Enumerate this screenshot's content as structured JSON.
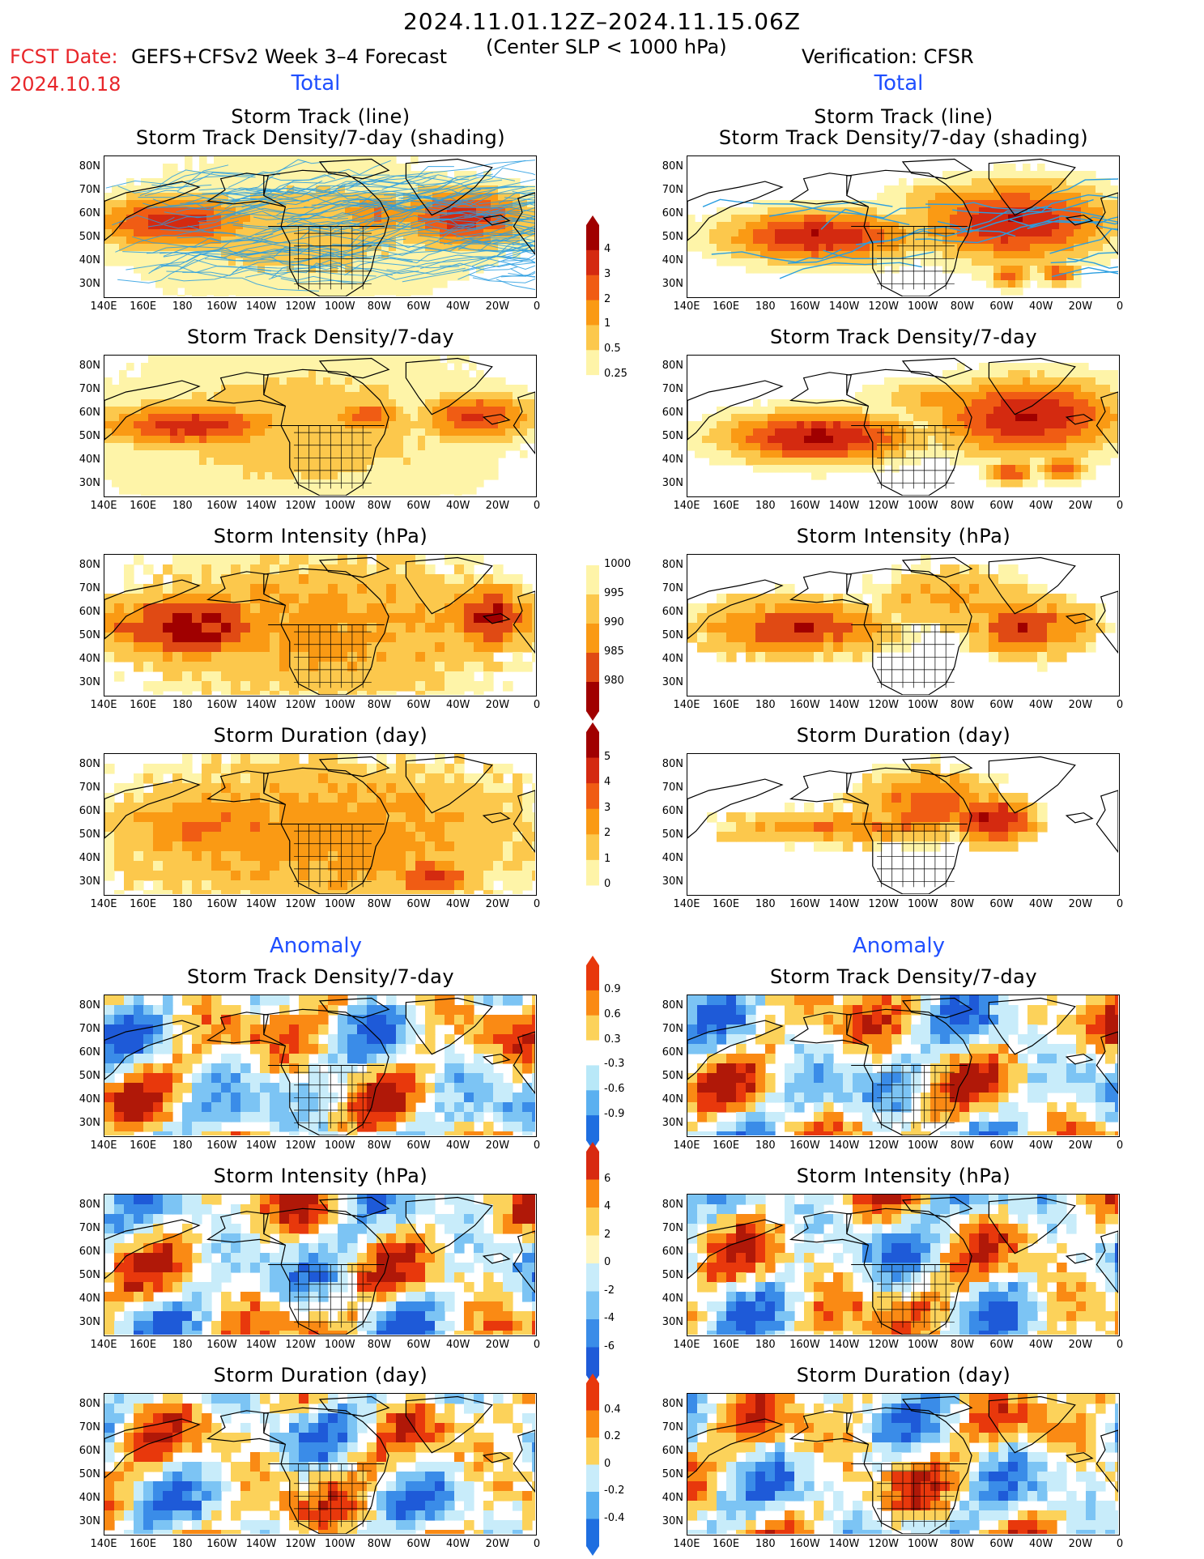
{
  "header": {
    "title": "2024.11.01.12Z–2024.11.15.06Z",
    "subtitle": "(Center SLP < 1000 hPa)",
    "fcst_date_label": "FCST Date:",
    "fcst_date_value": "2024.10.18",
    "forecast_model": "GEFS+CFSv2 Week 3–4 Forecast",
    "verification": "Verification: CFSR"
  },
  "sections": {
    "total": "Total",
    "anomaly": "Anomaly"
  },
  "axes": {
    "lat_labels": [
      "80N",
      "70N",
      "60N",
      "50N",
      "40N",
      "30N"
    ],
    "lon_labels": [
      "140E",
      "160E",
      "180",
      "160W",
      "140W",
      "120W",
      "100W",
      "80W",
      "60W",
      "40W",
      "20W",
      "0"
    ]
  },
  "panels": [
    {
      "id": "fc-track",
      "col": 0,
      "row": 0,
      "title1": "Storm Track (line)",
      "title2": "Storm Track Density/7-day (shading)",
      "kind": "track",
      "scale": "dens",
      "tracks": true
    },
    {
      "id": "vf-track",
      "col": 1,
      "row": 0,
      "title1": "Storm Track (line)",
      "title2": "Storm Track Density/7-day (shading)",
      "kind": "track",
      "scale": "dens",
      "tracks": true
    },
    {
      "id": "fc-density",
      "col": 0,
      "row": 1,
      "title1": "Storm Track Density/7-day",
      "kind": "density",
      "scale": "dens"
    },
    {
      "id": "vf-density",
      "col": 1,
      "row": 1,
      "title1": "Storm Track Density/7-day",
      "kind": "density",
      "scale": "dens"
    },
    {
      "id": "fc-intensity",
      "col": 0,
      "row": 2,
      "title1": "Storm Intensity (hPa)",
      "kind": "intensity",
      "scale": "int"
    },
    {
      "id": "vf-intensity",
      "col": 1,
      "row": 2,
      "title1": "Storm Intensity (hPa)",
      "kind": "intensity",
      "scale": "int"
    },
    {
      "id": "fc-duration",
      "col": 0,
      "row": 3,
      "title1": "Storm Duration (day)",
      "kind": "duration",
      "scale": "dur"
    },
    {
      "id": "vf-duration",
      "col": 1,
      "row": 3,
      "title1": "Storm Duration (day)",
      "kind": "duration",
      "scale": "dur"
    },
    {
      "id": "fc-density-anom",
      "col": 0,
      "row": 4,
      "title1": "Storm Track Density/7-day",
      "kind": "anom",
      "scale": "anom"
    },
    {
      "id": "vf-density-anom",
      "col": 1,
      "row": 4,
      "title1": "Storm Track Density/7-day",
      "kind": "anom",
      "scale": "anom"
    },
    {
      "id": "fc-intensity-anom",
      "col": 0,
      "row": 5,
      "title1": "Storm Intensity (hPa)",
      "kind": "anom",
      "scale": "anom"
    },
    {
      "id": "vf-intensity-anom",
      "col": 1,
      "row": 5,
      "title1": "Storm Intensity (hPa)",
      "kind": "anom",
      "scale": "anom"
    },
    {
      "id": "fc-duration-anom",
      "col": 0,
      "row": 6,
      "title1": "Storm Duration (day)",
      "kind": "anom",
      "scale": "anom"
    },
    {
      "id": "vf-duration-anom",
      "col": 1,
      "row": 6,
      "title1": "Storm Duration (day)",
      "kind": "anom",
      "scale": "anom"
    }
  ],
  "colorbars": [
    {
      "id": "cb-density",
      "labels": [
        "4",
        "3",
        "2",
        "1",
        "0.5",
        "0.25"
      ],
      "colors": [
        "#a00000",
        "#d42a10",
        "#f05c14",
        "#fa9a14",
        "#fcc84c",
        "#fef4a8",
        "#ffffff"
      ],
      "direction": "up"
    },
    {
      "id": "cb-intensity",
      "labels": [
        "1000",
        "995",
        "990",
        "985",
        "980"
      ],
      "colors": [
        "#ffffff",
        "#fef4a8",
        "#fcc84c",
        "#fa9a14",
        "#e04a14",
        "#a00000"
      ],
      "direction": "down"
    },
    {
      "id": "cb-duration",
      "labels": [
        "5",
        "4",
        "3",
        "2",
        "1",
        "0"
      ],
      "colors": [
        "#a00000",
        "#d42a10",
        "#f05c14",
        "#fa9a14",
        "#fcc84c",
        "#fef4a8",
        "#ffffff"
      ],
      "direction": "up"
    },
    {
      "id": "cb-density-anom",
      "labels": [
        "0.9",
        "0.6",
        "0.3",
        "-0.3",
        "-0.6",
        "-0.9"
      ],
      "colors": [
        "#e8380c",
        "#fa8a14",
        "#fcd25a",
        "#ffffff",
        "#b8e8f8",
        "#5ab0f0",
        "#1e6ee0"
      ],
      "direction": "both"
    },
    {
      "id": "cb-intensity-anom",
      "labels": [
        "6",
        "4",
        "2",
        "0",
        "-2",
        "-4",
        "-6"
      ],
      "colors": [
        "#d82a10",
        "#fa8a14",
        "#fcd25a",
        "#fff6c0",
        "#c8ecfa",
        "#7cc4f4",
        "#3a8ce8",
        "#1e5ad8"
      ],
      "direction": "both"
    },
    {
      "id": "cb-duration-anom",
      "labels": [
        "0.4",
        "0.2",
        "0",
        "-0.2",
        "-0.4"
      ],
      "colors": [
        "#e8380c",
        "#fa8a14",
        "#fcd25a",
        "#c8ecfa",
        "#5ab0f0",
        "#1e6ee0"
      ],
      "direction": "both"
    }
  ],
  "colors": {
    "track_line": "#2a9ee0",
    "coast": "#000000",
    "section_blue": "#1f4fff",
    "date_red": "#e8262a"
  }
}
